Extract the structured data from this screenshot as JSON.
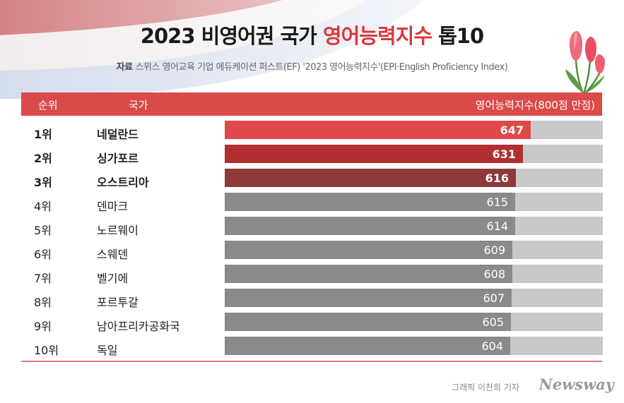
{
  "title": {
    "prefix": "2023 비영어권 국가 ",
    "highlight": "영어능력지수",
    "suffix": " 톱10"
  },
  "source": {
    "label": "자료",
    "text": "스위스 영어교육 기업 에듀케이션 퍼스트(EF) '2023 영어능력지수'(EPI·English Proficiency Index)"
  },
  "table_header": {
    "rank": "순위",
    "country": "국가",
    "value": "영어능력지수(800점 만점)"
  },
  "chart_data": {
    "type": "bar",
    "orientation": "horizontal",
    "max": 800,
    "rows": [
      {
        "rank": "1위",
        "country": "네덜란드",
        "value": 647,
        "color": "#e04849",
        "bold": true
      },
      {
        "rank": "2위",
        "country": "싱가포르",
        "value": 631,
        "color": "#b12f30",
        "bold": true
      },
      {
        "rank": "3위",
        "country": "오스트리아",
        "value": 616,
        "color": "#8e3a3b",
        "bold": true
      },
      {
        "rank": "4위",
        "country": "덴마크",
        "value": 615,
        "color": "#8a8a8a",
        "bold": false
      },
      {
        "rank": "5위",
        "country": "노르웨이",
        "value": 614,
        "color": "#8a8a8a",
        "bold": false
      },
      {
        "rank": "6위",
        "country": "스웨덴",
        "value": 609,
        "color": "#8a8a8a",
        "bold": false
      },
      {
        "rank": "7위",
        "country": "벨기에",
        "value": 608,
        "color": "#8a8a8a",
        "bold": false
      },
      {
        "rank": "8위",
        "country": "포르투갈",
        "value": 607,
        "color": "#8a8a8a",
        "bold": false
      },
      {
        "rank": "9위",
        "country": "남아프리카공화국",
        "value": 605,
        "color": "#8a8a8a",
        "bold": false
      },
      {
        "rank": "10위",
        "country": "독일",
        "value": 604,
        "color": "#8a8a8a",
        "bold": false
      }
    ]
  },
  "credit": "그래픽 이찬희 기자",
  "brand": "Newsway"
}
